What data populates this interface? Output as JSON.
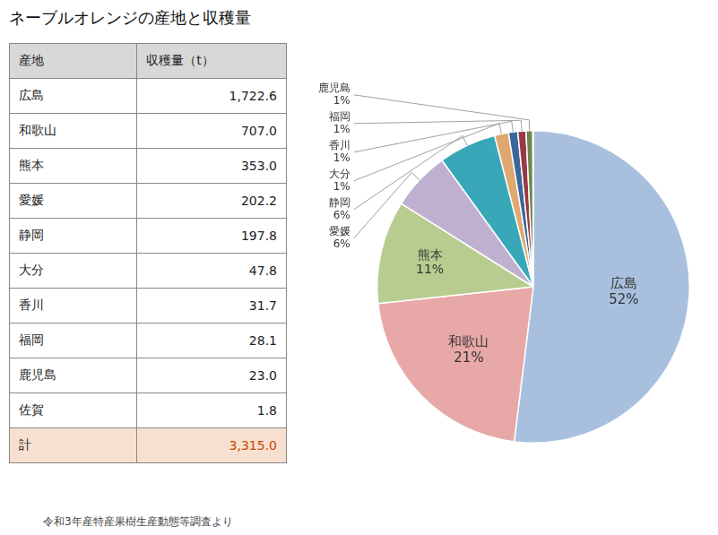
{
  "chart_data": {
    "type": "pie",
    "title": "ネーブルオレンジの産地と収穫量",
    "categories": [
      "広島",
      "和歌山",
      "熊本",
      "愛媛",
      "静岡",
      "大分",
      "香川",
      "福岡",
      "鹿児島",
      "佐賀"
    ],
    "values": [
      1722.6,
      707.0,
      353.0,
      202.2,
      197.8,
      47.8,
      31.7,
      28.1,
      23.0,
      1.8
    ],
    "value_labels": [
      "1,722.6",
      "707.0",
      "353.0",
      "202.2",
      "197.8",
      "47.8",
      "31.7",
      "28.1",
      "23.0",
      "1.8"
    ],
    "colors": [
      "#a8c0de",
      "#e8a8a8",
      "#b8cc90",
      "#c0b0d0",
      "#38a8b8",
      "#e0a870",
      "#3a6898",
      "#9a3848",
      "#6a8848",
      "#b8ccb8"
    ],
    "shares": [
      52,
      21,
      11,
      6,
      6,
      1,
      1,
      1,
      1,
      null
    ],
    "share_labels": [
      "52%",
      "21%",
      "11%",
      "6%",
      "6%",
      "1%",
      "1%",
      "1%",
      "1%",
      null
    ],
    "data_labels": true,
    "legend": false,
    "table": {
      "header": [
        "産地",
        "収穫量（t）"
      ],
      "total": {
        "name": "計",
        "label": "3,315.0"
      },
      "header_color": "#d8d8d8",
      "total_color": "#f8e0d0",
      "total_text_color": "#cc4400"
    },
    "footnote": "令和3年産特産果樹生産動態等調査より"
  }
}
